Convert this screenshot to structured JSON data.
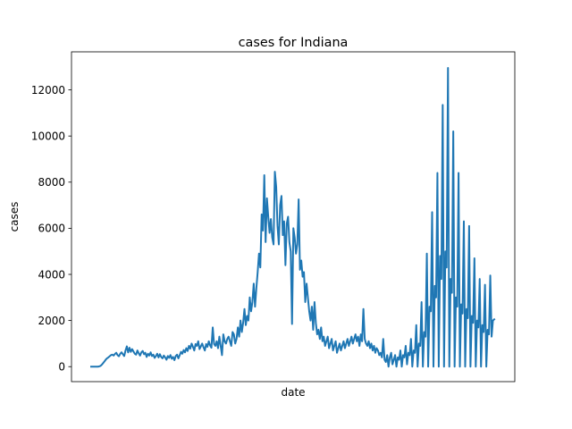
{
  "chart_data": {
    "type": "line",
    "title": "cases for Indiana",
    "xlabel": "date",
    "ylabel": "cases",
    "x_ticks_visible": false,
    "ylim": [
      -650,
      13650
    ],
    "yticks": [
      0,
      2000,
      4000,
      6000,
      8000,
      10000,
      12000
    ],
    "ytick_labels": [
      "0",
      "2000",
      "4000",
      "6000",
      "8000",
      "10000",
      "12000"
    ],
    "grid": false,
    "series": [
      {
        "color": "#1f77b4",
        "values": [
          0,
          0,
          0,
          0,
          0,
          0,
          10,
          30,
          80,
          150,
          220,
          300,
          360,
          400,
          450,
          500,
          520,
          480,
          550,
          600,
          500,
          450,
          560,
          620,
          540,
          460,
          700,
          880,
          620,
          820,
          640,
          760,
          660,
          560,
          520,
          700,
          580,
          480,
          620,
          680,
          540,
          600,
          420,
          560,
          480,
          620,
          460,
          520,
          380,
          460,
          560,
          400,
          540,
          420,
          360,
          480,
          400,
          300,
          460,
          380,
          500,
          340,
          420,
          280,
          460,
          520,
          360,
          500,
          640,
          560,
          720,
          620,
          800,
          680,
          900,
          780,
          1000,
          860,
          700,
          980,
          900,
          1100,
          760,
          880,
          1000,
          840,
          700,
          980,
          860,
          1100,
          920,
          820,
          1700,
          980,
          900,
          1100,
          800,
          1300,
          900,
          500,
          1400,
          1100,
          1000,
          1200,
          1300,
          1100,
          900,
          1500,
          1400,
          1000,
          1200,
          1700,
          1300,
          2000,
          1500,
          1900,
          2500,
          1800,
          2200,
          2000,
          3000,
          2400,
          2800,
          3600,
          2600,
          3400,
          4100,
          4900,
          4300,
          6600,
          5900,
          8300,
          5400,
          7300,
          6500,
          5800,
          6400,
          5600,
          5300,
          8450,
          7800,
          6100,
          5300,
          7000,
          7400,
          5700,
          6300,
          4400,
          6200,
          6500,
          5400,
          5000,
          1850,
          6000,
          5600,
          4900,
          5300,
          7250,
          4200,
          4600,
          3900,
          4100,
          2800,
          3600,
          3000,
          2400,
          2000,
          2600,
          1600,
          2800,
          1900,
          1400,
          1600,
          1200,
          1700,
          1100,
          1300,
          900,
          1100,
          1300,
          800,
          1000,
          1200,
          700,
          900,
          1100,
          600,
          800,
          1000,
          700,
          900,
          1100,
          800,
          1000,
          1200,
          900,
          1100,
          1300,
          1000,
          1200,
          1400,
          1100,
          1300,
          900,
          1400,
          1100,
          2500,
          1200,
          1000,
          900,
          1100,
          800,
          1000,
          700,
          900,
          600,
          800,
          700,
          500,
          600,
          400,
          1200,
          300,
          200,
          500,
          0,
          400,
          600,
          100,
          300,
          500,
          0,
          400,
          300,
          700,
          0,
          500,
          400,
          900,
          100,
          600,
          500,
          1200,
          0,
          700,
          600,
          1800,
          0,
          1000,
          900,
          2800,
          0,
          1500,
          1300,
          4900,
          0,
          2600,
          2400,
          6700,
          0,
          3500,
          3000,
          8400,
          0,
          4800,
          3800,
          11350,
          0,
          5000,
          4300,
          12950,
          0,
          3800,
          3200,
          10200,
          0,
          3000,
          2600,
          8400,
          0,
          2700,
          2300,
          6300,
          0,
          2500,
          2100,
          6100,
          0,
          2200,
          1900,
          4700,
          0,
          2000,
          1700,
          3800,
          0,
          1800,
          1500,
          3550,
          0,
          1600,
          1400,
          3950,
          1300,
          2000,
          2050
        ]
      }
    ]
  }
}
